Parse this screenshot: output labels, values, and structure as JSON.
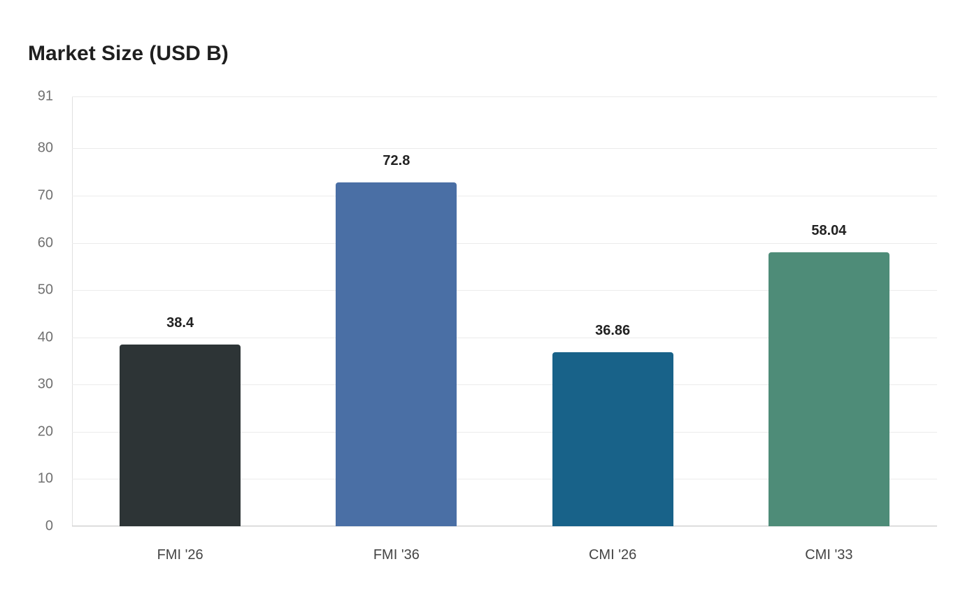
{
  "chart_data": {
    "type": "bar",
    "title": "Market Size (USD B)",
    "xlabel": "",
    "ylabel": "",
    "categories": [
      "FMI '26",
      "FMI '36",
      "CMI '26",
      "CMI '33"
    ],
    "values": [
      38.4,
      72.8,
      36.86,
      58.04
    ],
    "value_labels": [
      "38.4",
      "72.8",
      "36.86",
      "58.04"
    ],
    "colors": [
      "#2d3436",
      "#4a6fa5",
      "#186289",
      "#4e8c78"
    ],
    "ylim": [
      0,
      91
    ],
    "yticks": [
      "0",
      "10",
      "20",
      "30",
      "40",
      "50",
      "60",
      "70",
      "80",
      "91"
    ],
    "grid": true,
    "legend": null
  }
}
